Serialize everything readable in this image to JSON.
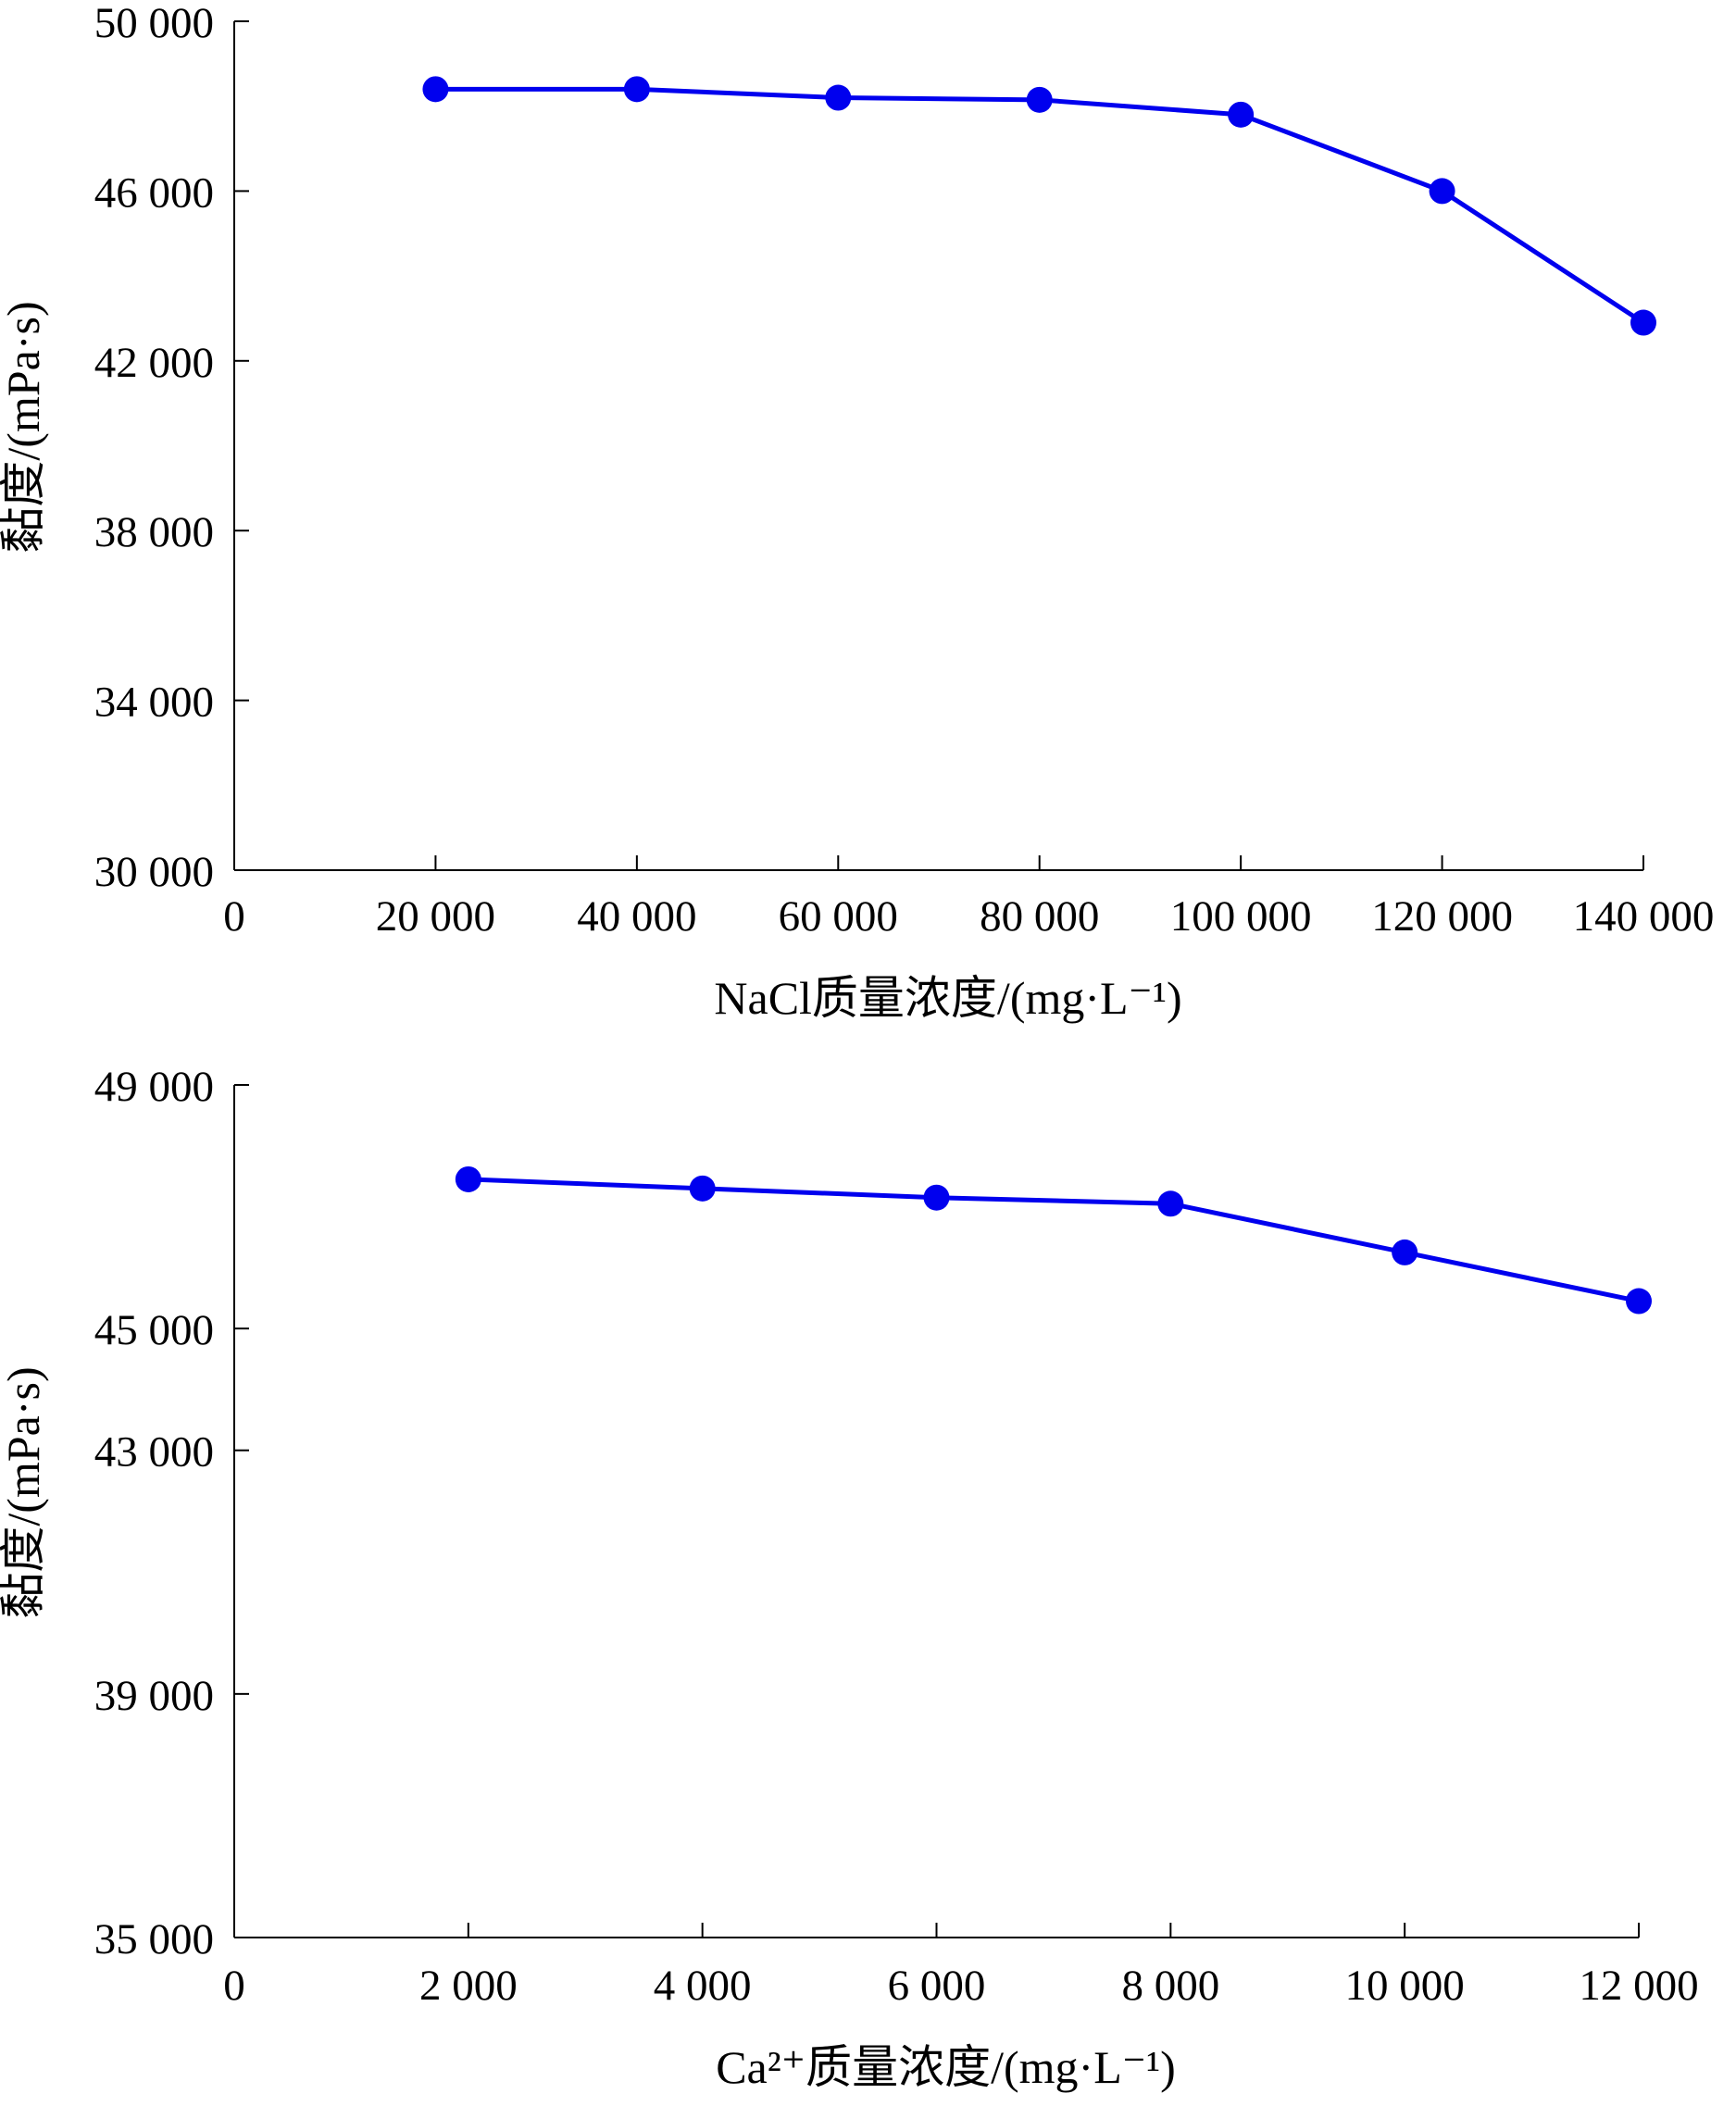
{
  "chart_data": [
    {
      "type": "line",
      "xlabel": "NaCl质量浓度/(mg·L⁻¹)",
      "ylabel": "黏度/(mPa·s)",
      "x_ticks": [
        0,
        20000,
        40000,
        60000,
        80000,
        100000,
        120000,
        140000
      ],
      "x_tick_labels": [
        "0",
        "20 000",
        "40 000",
        "60 000",
        "80 000",
        "100 000",
        "120 000",
        "140 000"
      ],
      "y_ticks": [
        30000,
        34000,
        38000,
        42000,
        46000,
        50000
      ],
      "y_tick_labels": [
        "30 000",
        "34 000",
        "38 000",
        "42 000",
        "46 000",
        "50 000"
      ],
      "xlim": [
        0,
        140000
      ],
      "ylim": [
        30000,
        50000
      ],
      "grid": false,
      "color": "#0000ee",
      "series": [
        {
          "x": [
            20000,
            40000,
            60000,
            80000,
            100000,
            120000,
            140000
          ],
          "values": [
            48400,
            48400,
            48200,
            48150,
            47800,
            46000,
            42900
          ]
        }
      ]
    },
    {
      "type": "line",
      "xlabel": "Ca²⁺质量浓度/(mg·L⁻¹)",
      "ylabel": "黏度/(mPa·s)",
      "x_ticks": [
        0,
        2000,
        4000,
        6000,
        8000,
        10000,
        12000
      ],
      "x_tick_labels": [
        "0",
        "2 000",
        "4 000",
        "6 000",
        "8 000",
        "10 000",
        "12 000"
      ],
      "y_ticks": [
        35000,
        39000,
        43000,
        45000,
        49000
      ],
      "y_tick_labels": [
        "35 000",
        "39 000",
        "43 000",
        "45 000",
        "49 000"
      ],
      "xlim": [
        0,
        12000
      ],
      "ylim": [
        35000,
        49000
      ],
      "grid": false,
      "color": "#0000ee",
      "series": [
        {
          "x": [
            2000,
            4000,
            6000,
            8000,
            10000,
            12000
          ],
          "values": [
            47450,
            47300,
            47150,
            47050,
            46250,
            45450
          ]
        }
      ]
    }
  ]
}
